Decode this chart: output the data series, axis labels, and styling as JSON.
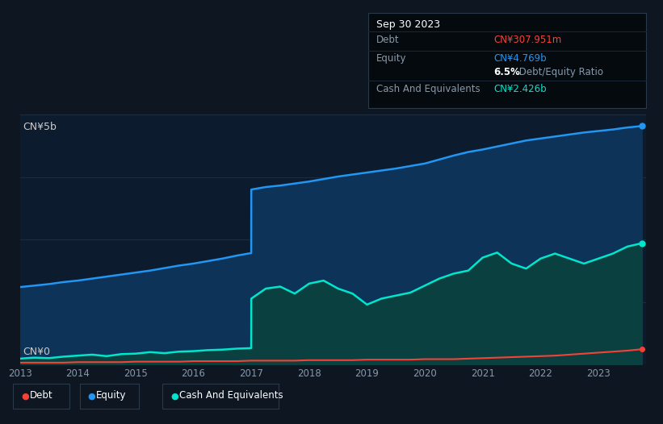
{
  "background_color": "#0e1621",
  "plot_bg_color": "#0d1b2e",
  "title": "Sep 30 2023",
  "ylabel_top": "CN¥5b",
  "ylabel_bottom": "CN¥0",
  "x_ticks": [
    2013,
    2014,
    2015,
    2016,
    2017,
    2018,
    2019,
    2020,
    2021,
    2022,
    2023
  ],
  "equity_color": "#2196f3",
  "debt_color": "#f44336",
  "cash_color": "#00e5cc",
  "equity_fill_color": "#0d3358",
  "cash_fill_color": "#0a4040",
  "grid_color": "#1e2e40",
  "years": [
    2013.0,
    2013.25,
    2013.5,
    2013.75,
    2014.0,
    2014.25,
    2014.5,
    2014.75,
    2015.0,
    2015.25,
    2015.5,
    2015.75,
    2016.0,
    2016.25,
    2016.5,
    2016.75,
    2016.999,
    2017.0,
    2017.25,
    2017.5,
    2017.75,
    2018.0,
    2018.25,
    2018.5,
    2018.75,
    2019.0,
    2019.25,
    2019.5,
    2019.75,
    2020.0,
    2020.25,
    2020.5,
    2020.75,
    2021.0,
    2021.25,
    2021.5,
    2021.75,
    2022.0,
    2022.25,
    2022.5,
    2022.75,
    2023.0,
    2023.25,
    2023.5,
    2023.75
  ],
  "equity": [
    1.55,
    1.58,
    1.61,
    1.65,
    1.68,
    1.72,
    1.76,
    1.8,
    1.84,
    1.88,
    1.93,
    1.98,
    2.02,
    2.07,
    2.12,
    2.18,
    2.23,
    3.5,
    3.55,
    3.58,
    3.62,
    3.66,
    3.71,
    3.76,
    3.8,
    3.84,
    3.88,
    3.92,
    3.97,
    4.02,
    4.1,
    4.18,
    4.25,
    4.3,
    4.36,
    4.42,
    4.48,
    4.52,
    4.56,
    4.6,
    4.64,
    4.67,
    4.7,
    4.74,
    4.769
  ],
  "cash": [
    0.12,
    0.14,
    0.13,
    0.16,
    0.18,
    0.2,
    0.17,
    0.21,
    0.22,
    0.25,
    0.23,
    0.26,
    0.27,
    0.29,
    0.3,
    0.32,
    0.33,
    1.32,
    1.52,
    1.56,
    1.42,
    1.62,
    1.68,
    1.52,
    1.42,
    1.2,
    1.32,
    1.38,
    1.44,
    1.58,
    1.72,
    1.82,
    1.88,
    2.14,
    2.24,
    2.02,
    1.92,
    2.12,
    2.22,
    2.12,
    2.02,
    2.12,
    2.22,
    2.36,
    2.426
  ],
  "debt": [
    0.04,
    0.04,
    0.04,
    0.04,
    0.05,
    0.05,
    0.05,
    0.05,
    0.06,
    0.06,
    0.06,
    0.06,
    0.07,
    0.07,
    0.07,
    0.07,
    0.08,
    0.08,
    0.08,
    0.08,
    0.08,
    0.09,
    0.09,
    0.09,
    0.09,
    0.1,
    0.1,
    0.1,
    0.1,
    0.11,
    0.11,
    0.11,
    0.12,
    0.13,
    0.14,
    0.15,
    0.16,
    0.17,
    0.18,
    0.2,
    0.22,
    0.24,
    0.26,
    0.28,
    0.308
  ],
  "ylim": [
    0,
    5.0
  ],
  "xlim": [
    2013.0,
    2023.83
  ],
  "grid_levels": [
    1.25,
    2.5,
    3.75,
    5.0
  ],
  "tooltip_debt": "CN¥307.951m",
  "tooltip_equity": "CN¥4.769b",
  "tooltip_ratio": "6.5%",
  "tooltip_ratio_text": " Debt/Equity Ratio",
  "tooltip_cash": "CN¥2.426b",
  "legend_items": [
    "Debt",
    "Equity",
    "Cash And Equivalents"
  ]
}
